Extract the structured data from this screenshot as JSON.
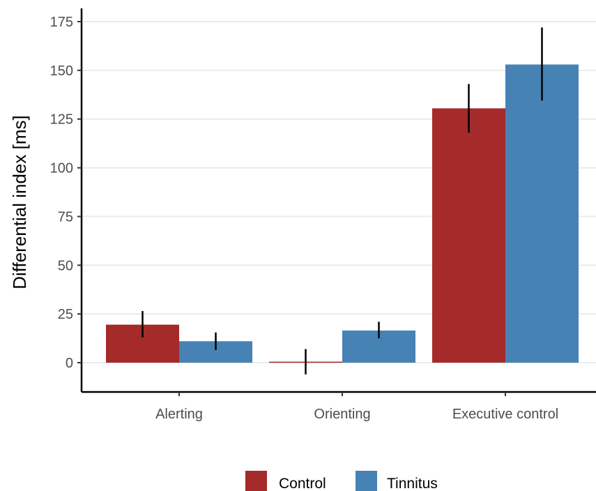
{
  "chart_data": {
    "type": "bar",
    "title": "",
    "xlabel": "",
    "ylabel": "Differential index [ms]",
    "categories": [
      "Alerting",
      "Orienting",
      "Executive control"
    ],
    "series": [
      {
        "name": "Control",
        "color": "#a52a2a",
        "values": [
          19.5,
          0.5,
          130.5
        ],
        "error": [
          [
            13,
            26.5
          ],
          [
            -6,
            7
          ],
          [
            118,
            143
          ]
        ]
      },
      {
        "name": "Tinnitus",
        "color": "#4682b4",
        "values": [
          11,
          16.5,
          153
        ],
        "error": [
          [
            6.5,
            15.5
          ],
          [
            12.5,
            21
          ],
          [
            134.5,
            172
          ]
        ]
      }
    ],
    "ylim": [
      -15,
      180
    ],
    "yticks": [
      0,
      25,
      50,
      75,
      100,
      125,
      150,
      175
    ],
    "grid": true,
    "legend": {
      "position": "bottom",
      "entries": [
        "Control",
        "Tinnitus"
      ]
    }
  }
}
